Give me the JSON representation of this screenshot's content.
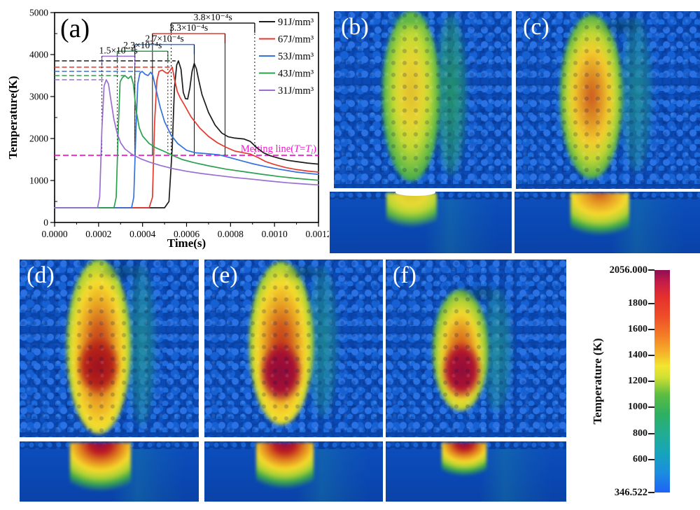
{
  "figure": {
    "panels": {
      "b": {
        "label": "(b)"
      },
      "c": {
        "label": "(c)"
      },
      "d": {
        "label": "(d)"
      },
      "e": {
        "label": "(e)"
      },
      "f": {
        "label": "(f)"
      }
    }
  },
  "chart_data": {
    "type": "line",
    "panel_label": "(a)",
    "xlabel": "Time(s)",
    "ylabel": "Temperature(K)",
    "xlim": [
      0,
      0.0012
    ],
    "ylim": [
      0,
      5000
    ],
    "xtick_values": [
      0,
      0.0002,
      0.0004,
      0.0006,
      0.0008,
      0.001,
      0.0012
    ],
    "xtick_labels": [
      "0.0000",
      "0.0002",
      "0.0004",
      "0.0006",
      "0.0008",
      "0.0010",
      "0.0012"
    ],
    "ytick_values": [
      0,
      1000,
      2000,
      3000,
      4000,
      5000
    ],
    "ytick_labels": [
      "0",
      "1000",
      "2000",
      "3000",
      "4000",
      "5000"
    ],
    "x_minor_step": 0.0001,
    "y_minor_step": 500,
    "grid": false,
    "legend_position": "top-right",
    "series": [
      {
        "name": "91J/mm³",
        "color": "#1c1c1c",
        "points": [
          [
            0,
            350
          ],
          [
            0.0005,
            350
          ],
          [
            0.00052,
            500
          ],
          [
            0.000535,
            1800
          ],
          [
            0.000545,
            3200
          ],
          [
            0.000555,
            3750
          ],
          [
            0.000563,
            3850
          ],
          [
            0.000575,
            3650
          ],
          [
            0.000585,
            3100
          ],
          [
            0.000595,
            2950
          ],
          [
            0.000605,
            2940
          ],
          [
            0.000615,
            3200
          ],
          [
            0.000625,
            3600
          ],
          [
            0.000635,
            3790
          ],
          [
            0.000645,
            3660
          ],
          [
            0.000655,
            3400
          ],
          [
            0.00067,
            3050
          ],
          [
            0.0007,
            2620
          ],
          [
            0.00073,
            2320
          ],
          [
            0.00076,
            2130
          ],
          [
            0.00079,
            2040
          ],
          [
            0.00082,
            2010
          ],
          [
            0.00086,
            1990
          ],
          [
            0.00089,
            1930
          ],
          [
            0.00092,
            1780
          ],
          [
            0.00095,
            1660
          ],
          [
            0.00098,
            1590
          ],
          [
            0.00102,
            1530
          ],
          [
            0.00106,
            1480
          ],
          [
            0.0011,
            1450
          ],
          [
            0.00115,
            1415
          ],
          [
            0.0012,
            1390
          ]
        ]
      },
      {
        "name": "67J/mm³",
        "color": "#e3392e",
        "points": [
          [
            0,
            350
          ],
          [
            0.00043,
            350
          ],
          [
            0.000445,
            600
          ],
          [
            0.000455,
            2400
          ],
          [
            0.000465,
            3380
          ],
          [
            0.000475,
            3600
          ],
          [
            0.00049,
            3630
          ],
          [
            0.000505,
            3570
          ],
          [
            0.000515,
            3550
          ],
          [
            0.000528,
            3640
          ],
          [
            0.000535,
            3700
          ],
          [
            0.000545,
            3420
          ],
          [
            0.000558,
            3120
          ],
          [
            0.00057,
            2980
          ],
          [
            0.00059,
            2800
          ],
          [
            0.00062,
            2520
          ],
          [
            0.00066,
            2250
          ],
          [
            0.0007,
            2050
          ],
          [
            0.00074,
            1900
          ],
          [
            0.00078,
            1790
          ],
          [
            0.00082,
            1700
          ],
          [
            0.00086,
            1660
          ],
          [
            0.00089,
            1630
          ],
          [
            0.00092,
            1560
          ],
          [
            0.00096,
            1450
          ],
          [
            0.001,
            1380
          ],
          [
            0.00105,
            1310
          ],
          [
            0.0011,
            1260
          ],
          [
            0.00115,
            1225
          ],
          [
            0.0012,
            1200
          ]
        ]
      },
      {
        "name": "53J/mm³",
        "color": "#3671dd",
        "points": [
          [
            0,
            350
          ],
          [
            0.00035,
            350
          ],
          [
            0.00036,
            600
          ],
          [
            0.00037,
            2200
          ],
          [
            0.000378,
            3300
          ],
          [
            0.000388,
            3560
          ],
          [
            0.000398,
            3600
          ],
          [
            0.000412,
            3530
          ],
          [
            0.000425,
            3500
          ],
          [
            0.000437,
            3580
          ],
          [
            0.000447,
            3500
          ],
          [
            0.00046,
            3200
          ],
          [
            0.00048,
            2750
          ],
          [
            0.0005,
            2400
          ],
          [
            0.00053,
            2080
          ],
          [
            0.00056,
            1880
          ],
          [
            0.0006,
            1720
          ],
          [
            0.00064,
            1660
          ],
          [
            0.0007,
            1635
          ],
          [
            0.00075,
            1610
          ],
          [
            0.0008,
            1540
          ],
          [
            0.00085,
            1470
          ],
          [
            0.0009,
            1400
          ],
          [
            0.00096,
            1330
          ],
          [
            0.00102,
            1270
          ],
          [
            0.0011,
            1200
          ],
          [
            0.0012,
            1145
          ]
        ]
      },
      {
        "name": "43J/mm³",
        "color": "#2aa14c",
        "points": [
          [
            0,
            350
          ],
          [
            0.00027,
            350
          ],
          [
            0.00028,
            600
          ],
          [
            0.00029,
            2300
          ],
          [
            0.000298,
            3350
          ],
          [
            0.000308,
            3450
          ],
          [
            0.00032,
            3500
          ],
          [
            0.000335,
            3430
          ],
          [
            0.000348,
            3490
          ],
          [
            0.000358,
            3300
          ],
          [
            0.00037,
            2700
          ],
          [
            0.000385,
            2250
          ],
          [
            0.0004,
            2060
          ],
          [
            0.00043,
            1880
          ],
          [
            0.00046,
            1780
          ],
          [
            0.0005,
            1690
          ],
          [
            0.00054,
            1590
          ],
          [
            0.00058,
            1500
          ],
          [
            0.00063,
            1430
          ],
          [
            0.0007,
            1350
          ],
          [
            0.00078,
            1270
          ],
          [
            0.00086,
            1210
          ],
          [
            0.00094,
            1150
          ],
          [
            0.00102,
            1095
          ],
          [
            0.0011,
            1050
          ],
          [
            0.0012,
            1005
          ]
        ]
      },
      {
        "name": "31J/mm³",
        "color": "#9a6fd0",
        "points": [
          [
            0,
            350
          ],
          [
            0.000195,
            350
          ],
          [
            0.000205,
            600
          ],
          [
            0.000215,
            2200
          ],
          [
            0.000225,
            3250
          ],
          [
            0.000235,
            3400
          ],
          [
            0.000245,
            3300
          ],
          [
            0.000255,
            2950
          ],
          [
            0.00027,
            2450
          ],
          [
            0.000285,
            2120
          ],
          [
            0.0003,
            1900
          ],
          [
            0.00032,
            1750
          ],
          [
            0.00035,
            1630
          ],
          [
            0.00039,
            1520
          ],
          [
            0.00043,
            1440
          ],
          [
            0.00048,
            1360
          ],
          [
            0.00054,
            1280
          ],
          [
            0.0006,
            1220
          ],
          [
            0.00067,
            1165
          ],
          [
            0.00074,
            1120
          ],
          [
            0.00082,
            1070
          ],
          [
            0.0009,
            1030
          ],
          [
            0.00098,
            985
          ],
          [
            0.00106,
            945
          ],
          [
            0.00114,
            915
          ],
          [
            0.0012,
            895
          ]
        ]
      }
    ],
    "peak_dash_lines": [
      {
        "color": "#1c1c1c",
        "temperature": 3850,
        "t_end": 0.00055
      },
      {
        "color": "#e3392e",
        "temperature": 3700,
        "t_end": 0.000535
      },
      {
        "color": "#3671dd",
        "temperature": 3600,
        "t_end": 0.000395
      },
      {
        "color": "#2aa14c",
        "temperature": 3500,
        "t_end": 0.00032
      },
      {
        "color": "#9a6fd0",
        "temperature": 3400,
        "t_end": 0.000235
      }
    ],
    "duration_brackets": [
      {
        "label": "3.8×10⁻⁴s",
        "color": "#1c1c1c",
        "t_start": 0.00053,
        "t_end": 0.00091,
        "temperature": 4750,
        "drop_style": "dotted"
      },
      {
        "label": "3.3×10⁻⁴s",
        "color": "#e3392e",
        "t_start": 0.000445,
        "t_end": 0.000775,
        "temperature": 4500,
        "drop_style": "solid"
      },
      {
        "label": "2.7×10⁻⁴s",
        "color": "#3671dd",
        "t_start": 0.000365,
        "t_end": 0.000635,
        "temperature": 4240,
        "drop_style": "solid"
      },
      {
        "label": "2.3×10⁻⁴s",
        "color": "#2aa14c",
        "t_start": 0.000285,
        "t_end": 0.000515,
        "temperature": 4080,
        "drop_style": "dotted"
      },
      {
        "label": "1.5×10⁻⁴s",
        "color": "#9a6fd0",
        "t_start": 0.000215,
        "t_end": 0.000365,
        "temperature": 3960,
        "drop_style": "dotted"
      }
    ],
    "melting_line": {
      "temperature": 1600,
      "color": "#f318cf",
      "label_parts": [
        {
          "text": "Melting line("
        },
        {
          "text": "T",
          "italic": true
        },
        {
          "text": "="
        },
        {
          "text": "T",
          "italic": true
        },
        {
          "text": "l",
          "italic": true,
          "sub": true
        },
        {
          "text": ")"
        }
      ]
    }
  },
  "colorbar": {
    "title": "Temperature (K)",
    "min": 346.522,
    "max": 2056,
    "min_label": "346.522",
    "max_label": "2056.000",
    "ticks": [
      600,
      800,
      1000,
      1200,
      1400,
      1600,
      1800
    ],
    "gradient": [
      {
        "value": 346.522,
        "color": "#1e63f7"
      },
      {
        "value": 500,
        "color": "#1b8ede"
      },
      {
        "value": 650,
        "color": "#16a4bb"
      },
      {
        "value": 800,
        "color": "#22ad92"
      },
      {
        "value": 950,
        "color": "#2eb060"
      },
      {
        "value": 1100,
        "color": "#5dbd42"
      },
      {
        "value": 1230,
        "color": "#cfe032"
      },
      {
        "value": 1320,
        "color": "#f2e52f"
      },
      {
        "value": 1430,
        "color": "#f6ae2a"
      },
      {
        "value": 1560,
        "color": "#f37b27"
      },
      {
        "value": 1700,
        "color": "#ee4d28"
      },
      {
        "value": 1850,
        "color": "#e4302d"
      },
      {
        "value": 1960,
        "color": "#c61d47"
      },
      {
        "value": 2056,
        "color": "#8e0e54"
      }
    ]
  }
}
